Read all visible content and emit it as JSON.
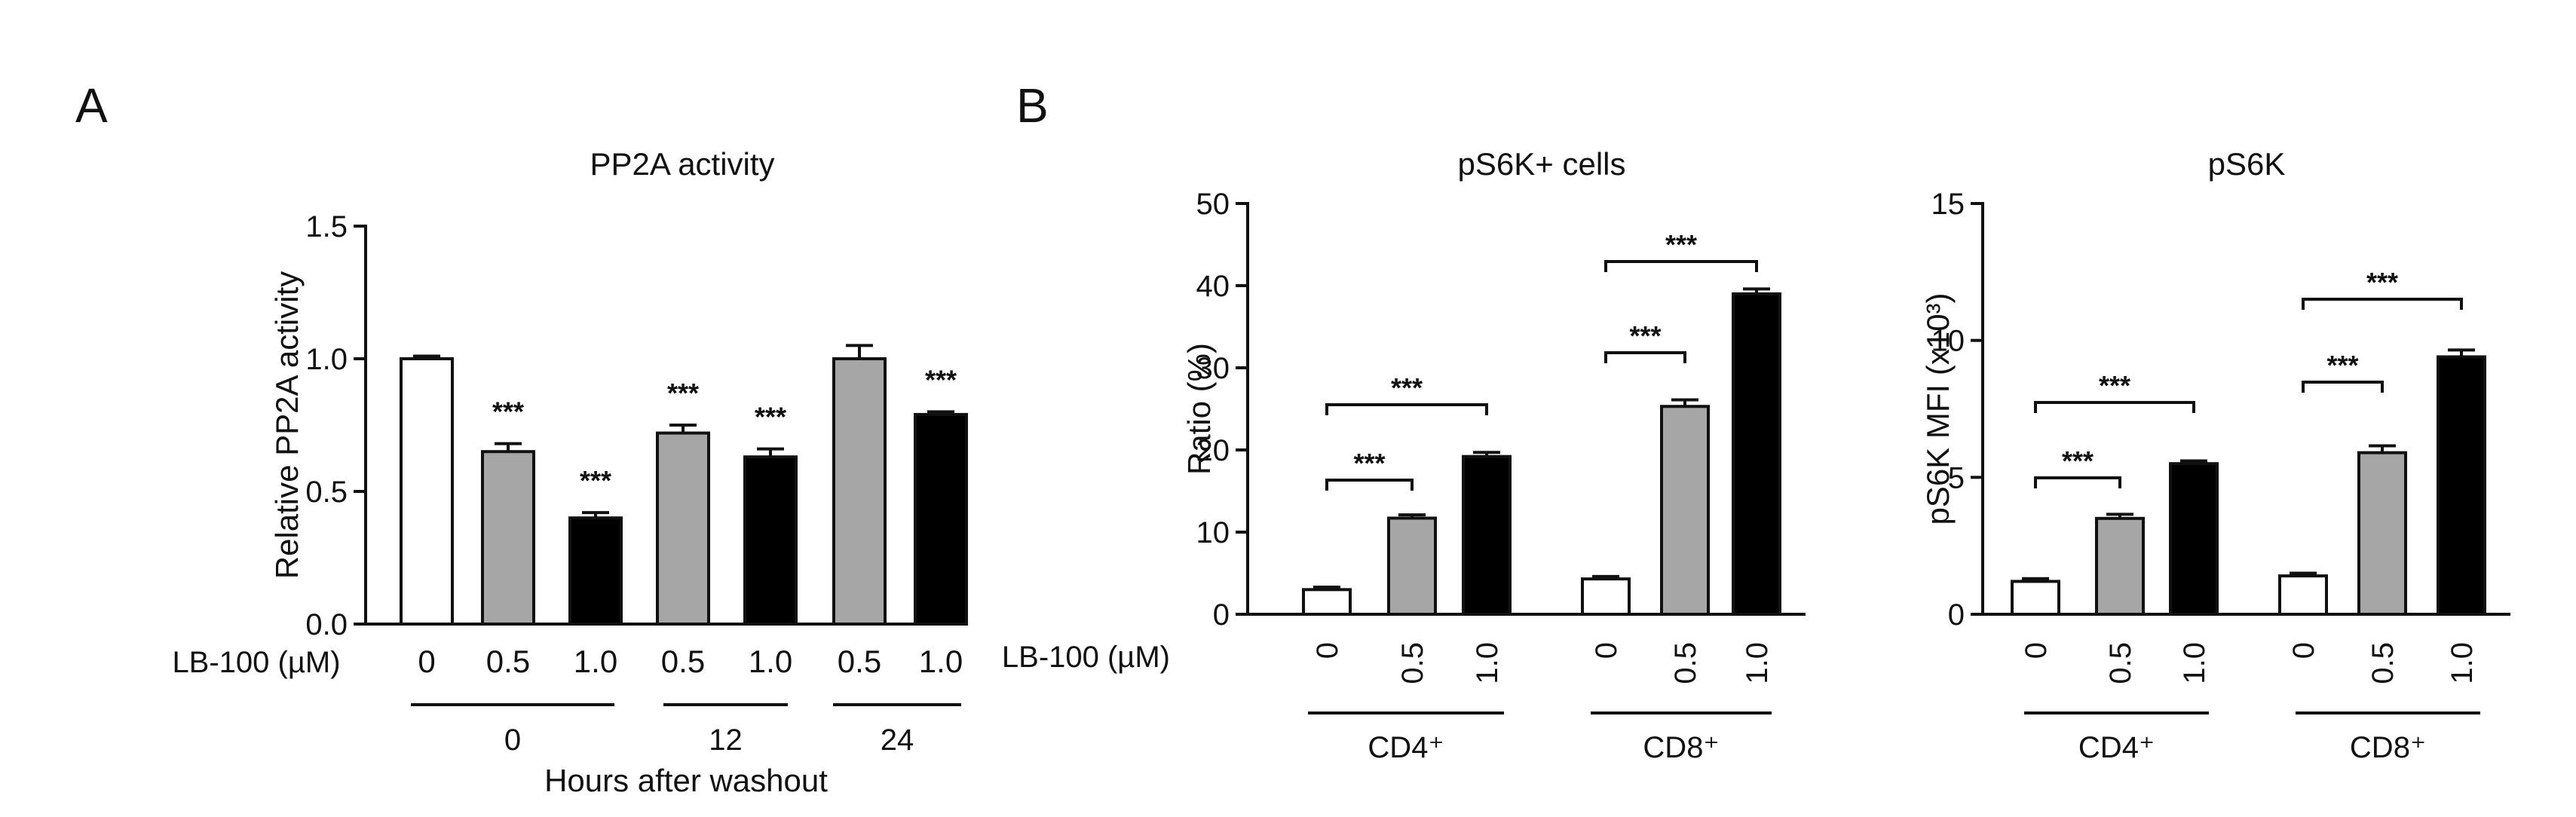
{
  "panels": [
    {
      "letter": "A"
    },
    {
      "letter": "B"
    }
  ],
  "chart_data": [
    {
      "type": "bar",
      "title": "PP2A activity",
      "ylabel": "Relative PP2A activity",
      "ylim": [
        0,
        1.5
      ],
      "yticks": [
        "0.0",
        "0.5",
        "1.0",
        "1.5"
      ],
      "treatment_label": "LB-100 (µM)",
      "categories": [
        "0",
        "0.5",
        "1.0",
        "0.5",
        "1.0",
        "0.5",
        "1.0"
      ],
      "values": [
        1.0,
        0.65,
        0.4,
        0.72,
        0.63,
        1.0,
        0.79
      ],
      "errors": [
        0.01,
        0.03,
        0.02,
        0.03,
        0.03,
        0.05,
        0.01
      ],
      "fills": [
        "#ffffff",
        "#a6a6a6",
        "#000000",
        "#a6a6a6",
        "#000000",
        "#a6a6a6",
        "#000000"
      ],
      "significance": [
        "",
        "***",
        "***",
        "***",
        "***",
        "",
        "***"
      ],
      "groups": [
        {
          "label": "0"
        },
        {
          "label": "12"
        },
        {
          "label": "24"
        }
      ],
      "xlabel": "Hours after washout"
    },
    {
      "type": "bar",
      "title": "pS6K+ cells",
      "ylabel": "Ratio (%)",
      "ylim": [
        0,
        50
      ],
      "yticks": [
        "0",
        "10",
        "20",
        "30",
        "40",
        "50"
      ],
      "treatment_label": "LB-100 (µM)",
      "categories": [
        "0",
        "0.5",
        "1.0",
        "0",
        "0.5",
        "1.0"
      ],
      "values": [
        3,
        11.7,
        19.2,
        4.3,
        25.3,
        39.0
      ],
      "errors": [
        0.3,
        0.4,
        0.5,
        0.3,
        0.8,
        0.6
      ],
      "fills": [
        "#ffffff",
        "#a6a6a6",
        "#000000",
        "#ffffff",
        "#a6a6a6",
        "#000000"
      ],
      "groups": [
        {
          "label": "CD4⁺"
        },
        {
          "label": "CD8⁺"
        }
      ],
      "comparisons": [
        "***",
        "***",
        "***",
        "***"
      ]
    },
    {
      "type": "bar",
      "title": "pS6K",
      "ylabel": "pS6K MFI (x10³)",
      "ylim": [
        0,
        15
      ],
      "yticks": [
        "0",
        "5",
        "10",
        "15"
      ],
      "categories": [
        "0",
        "0.5",
        "1.0",
        "0",
        "0.5",
        "1.0"
      ],
      "values": [
        1.2,
        3.5,
        5.5,
        1.4,
        5.9,
        9.4
      ],
      "errors": [
        0.1,
        0.15,
        0.1,
        0.1,
        0.25,
        0.25
      ],
      "fills": [
        "#ffffff",
        "#a6a6a6",
        "#000000",
        "#ffffff",
        "#a6a6a6",
        "#000000"
      ],
      "groups": [
        {
          "label": "CD4⁺"
        },
        {
          "label": "CD8⁺"
        }
      ],
      "comparisons": [
        "***",
        "***",
        "***",
        "***"
      ]
    }
  ]
}
